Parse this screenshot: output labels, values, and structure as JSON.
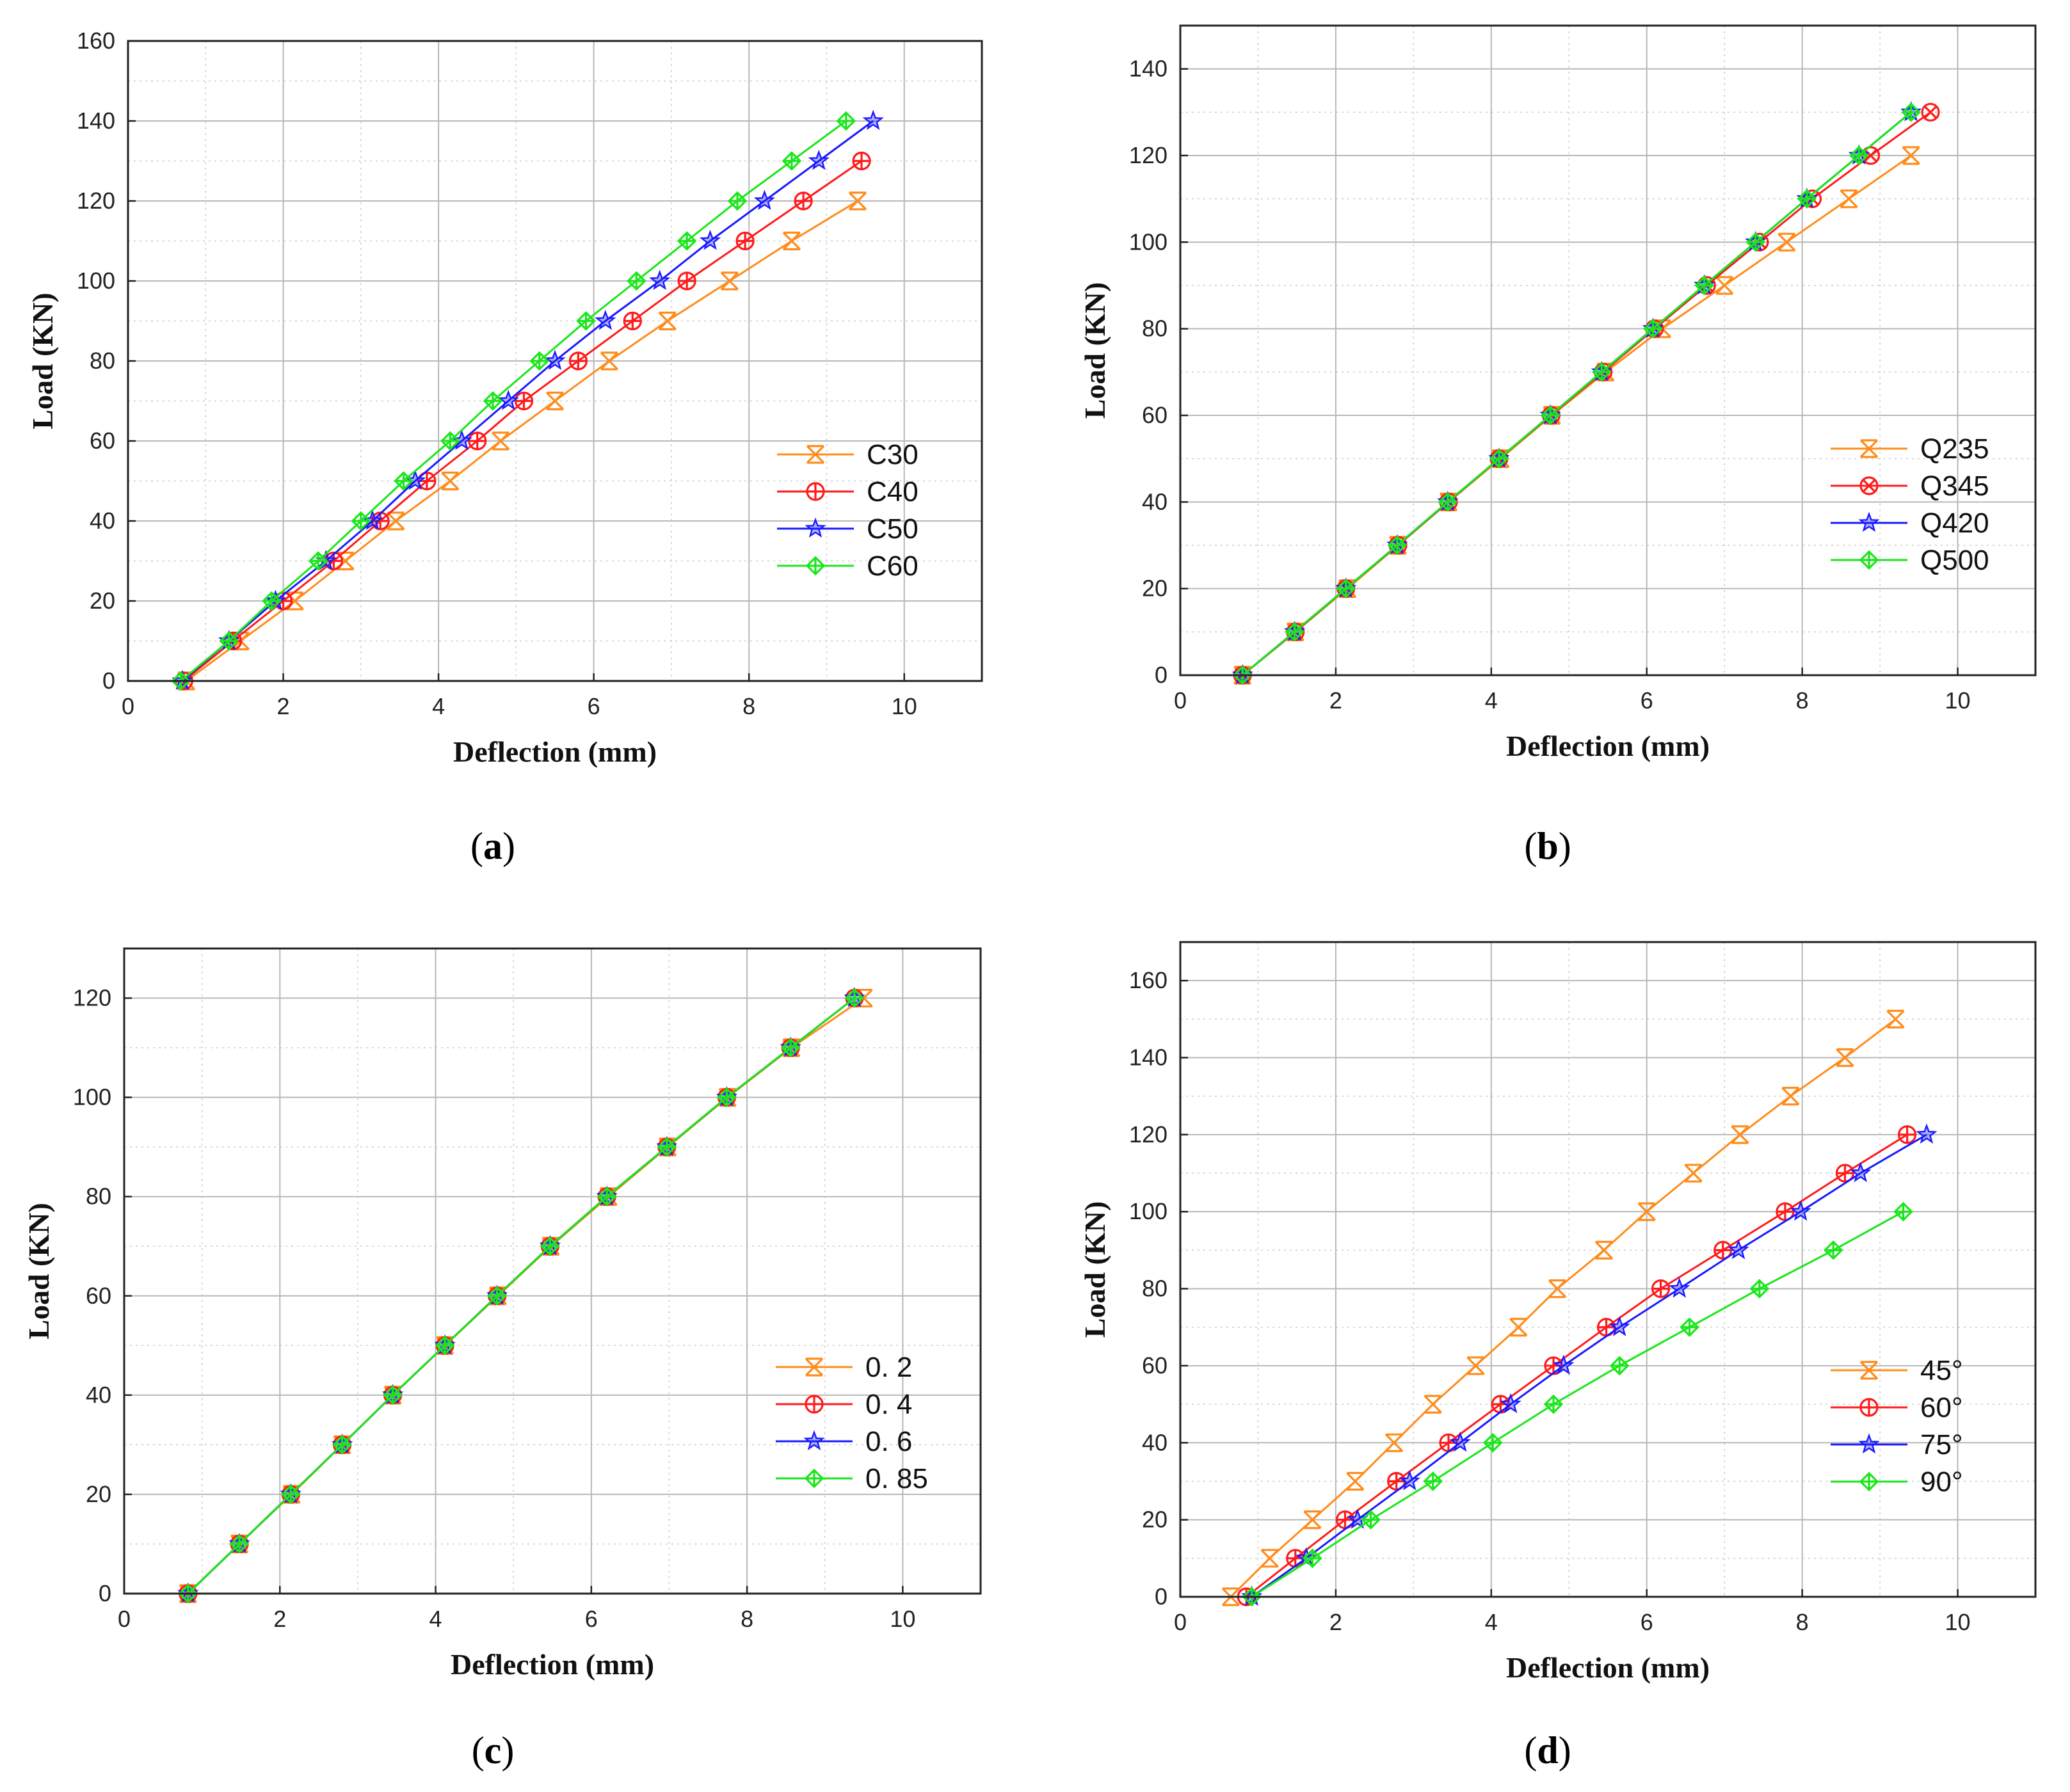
{
  "chart_data": [
    {
      "panel": "a",
      "type": "line",
      "xlabel": "Deflection (mm)",
      "ylabel": "Load (KN)",
      "xlim": [
        0,
        11
      ],
      "ylim": [
        0,
        160
      ],
      "xticks": [
        0,
        2,
        4,
        6,
        8,
        10
      ],
      "yticks": [
        0,
        20,
        40,
        60,
        80,
        100,
        120,
        140,
        160
      ],
      "grid": true,
      "legend_position": "lower-right",
      "series": [
        {
          "name": "C30",
          "color": "#ff8c1a",
          "marker": "x-cross",
          "x": [
            0.75,
            1.45,
            2.15,
            2.8,
            3.45,
            4.15,
            4.8,
            5.5,
            6.2,
            6.95,
            7.75,
            8.55,
            9.4
          ],
          "y": [
            0,
            10,
            20,
            30,
            40,
            50,
            60,
            70,
            80,
            90,
            100,
            110,
            120
          ]
        },
        {
          "name": "C40",
          "color": "#ff1a1a",
          "marker": "circle-cross",
          "x": [
            0.72,
            1.35,
            2.0,
            2.65,
            3.25,
            3.85,
            4.5,
            5.1,
            5.8,
            6.5,
            7.2,
            7.95,
            8.7,
            9.45
          ],
          "y": [
            0,
            10,
            20,
            30,
            40,
            50,
            60,
            70,
            80,
            90,
            100,
            110,
            120,
            130
          ]
        },
        {
          "name": "C50",
          "color": "#1a1aff",
          "marker": "star",
          "x": [
            0.7,
            1.3,
            1.9,
            2.55,
            3.15,
            3.7,
            4.3,
            4.9,
            5.5,
            6.15,
            6.85,
            7.5,
            8.2,
            8.9,
            9.6
          ],
          "y": [
            0,
            10,
            20,
            30,
            40,
            50,
            60,
            70,
            80,
            90,
            100,
            110,
            120,
            130,
            140
          ]
        },
        {
          "name": "C60",
          "color": "#1ae61a",
          "marker": "diamond-cross",
          "x": [
            0.68,
            1.3,
            1.85,
            2.45,
            3.0,
            3.55,
            4.15,
            4.7,
            5.3,
            5.9,
            6.55,
            7.2,
            7.85,
            8.55,
            9.25
          ],
          "y": [
            0,
            10,
            20,
            30,
            40,
            50,
            60,
            70,
            80,
            90,
            100,
            110,
            120,
            130,
            140
          ]
        }
      ]
    },
    {
      "panel": "b",
      "type": "line",
      "xlabel": "Deflection (mm)",
      "ylabel": "Load (KN)",
      "xlim": [
        0,
        11
      ],
      "ylim": [
        0,
        150
      ],
      "xticks": [
        0,
        2,
        4,
        6,
        8,
        10
      ],
      "yticks": [
        0,
        20,
        40,
        60,
        80,
        100,
        120,
        140
      ],
      "grid": true,
      "legend_position": "lower-right",
      "series": [
        {
          "name": "Q235",
          "color": "#ff8c1a",
          "marker": "x-cross",
          "x": [
            0.8,
            1.48,
            2.15,
            2.8,
            3.45,
            4.12,
            4.78,
            5.47,
            6.2,
            7.0,
            7.8,
            8.6,
            9.4
          ],
          "y": [
            0,
            10,
            20,
            30,
            40,
            50,
            60,
            70,
            80,
            90,
            100,
            110,
            120
          ]
        },
        {
          "name": "Q345",
          "color": "#ff1a1a",
          "marker": "circle-x",
          "x": [
            0.8,
            1.48,
            2.13,
            2.8,
            3.45,
            4.1,
            4.77,
            5.44,
            6.1,
            6.77,
            7.45,
            8.13,
            8.88,
            9.65
          ],
          "y": [
            0,
            10,
            20,
            30,
            40,
            50,
            60,
            70,
            80,
            90,
            100,
            110,
            120,
            130
          ]
        },
        {
          "name": "Q420",
          "color": "#1a1aff",
          "marker": "star",
          "x": [
            0.8,
            1.47,
            2.13,
            2.79,
            3.44,
            4.1,
            4.76,
            5.42,
            6.08,
            6.74,
            7.4,
            8.06,
            8.73,
            9.4
          ],
          "y": [
            0,
            10,
            20,
            30,
            40,
            50,
            60,
            70,
            80,
            90,
            100,
            110,
            120,
            130
          ]
        },
        {
          "name": "Q500",
          "color": "#1ae61a",
          "marker": "diamond-cross",
          "x": [
            0.8,
            1.47,
            2.13,
            2.79,
            3.44,
            4.1,
            4.76,
            5.42,
            6.08,
            6.74,
            7.4,
            8.06,
            8.73,
            9.4
          ],
          "y": [
            0,
            10,
            20,
            30,
            40,
            50,
            60,
            70,
            80,
            90,
            100,
            110,
            120,
            130
          ]
        }
      ]
    },
    {
      "panel": "c",
      "type": "line",
      "xlabel": "Deflection (mm)",
      "ylabel": "Load (KN)",
      "xlim": [
        0,
        11
      ],
      "ylim": [
        0,
        130
      ],
      "xticks": [
        0,
        2,
        4,
        6,
        8,
        10
      ],
      "yticks": [
        0,
        20,
        40,
        60,
        80,
        100,
        120
      ],
      "grid": true,
      "legend_position": "lower-right",
      "series": [
        {
          "name": "0. 2",
          "color": "#ff8c1a",
          "marker": "x-cross",
          "x": [
            0.82,
            1.48,
            2.15,
            2.8,
            3.45,
            4.12,
            4.8,
            5.48,
            6.22,
            6.98,
            7.75,
            8.57,
            9.5
          ],
          "y": [
            0,
            10,
            20,
            30,
            40,
            50,
            60,
            70,
            80,
            90,
            100,
            110,
            120
          ]
        },
        {
          "name": "0. 4",
          "color": "#ff1a1a",
          "marker": "circle-cross",
          "x": [
            0.82,
            1.48,
            2.14,
            2.8,
            3.45,
            4.12,
            4.79,
            5.47,
            6.2,
            6.97,
            7.74,
            8.56,
            9.38
          ],
          "y": [
            0,
            10,
            20,
            30,
            40,
            50,
            60,
            70,
            80,
            90,
            100,
            110,
            120
          ]
        },
        {
          "name": "0. 6",
          "color": "#1a1aff",
          "marker": "star",
          "x": [
            0.82,
            1.48,
            2.14,
            2.8,
            3.45,
            4.12,
            4.79,
            5.47,
            6.2,
            6.97,
            7.74,
            8.56,
            9.38
          ],
          "y": [
            0,
            10,
            20,
            30,
            40,
            50,
            60,
            70,
            80,
            90,
            100,
            110,
            120
          ]
        },
        {
          "name": "0. 85",
          "color": "#1ae61a",
          "marker": "diamond-cross",
          "x": [
            0.82,
            1.48,
            2.14,
            2.8,
            3.45,
            4.12,
            4.79,
            5.47,
            6.2,
            6.97,
            7.74,
            8.56,
            9.38
          ],
          "y": [
            0,
            10,
            20,
            30,
            40,
            50,
            60,
            70,
            80,
            90,
            100,
            110,
            120
          ]
        }
      ]
    },
    {
      "panel": "d",
      "type": "line",
      "xlabel": "Deflection (mm)",
      "ylabel": "Load (KN)",
      "xlim": [
        0,
        11
      ],
      "ylim": [
        0,
        170
      ],
      "xticks": [
        0,
        2,
        4,
        6,
        8,
        10
      ],
      "yticks": [
        0,
        20,
        40,
        60,
        80,
        100,
        120,
        140,
        160
      ],
      "grid": true,
      "legend_position": "lower-right",
      "series": [
        {
          "name": "45°",
          "color": "#ff8c1a",
          "marker": "x-cross",
          "x": [
            0.65,
            1.15,
            1.7,
            2.25,
            2.75,
            3.25,
            3.8,
            4.35,
            4.85,
            5.45,
            6.0,
            6.6,
            7.2,
            7.85,
            8.55,
            9.2
          ],
          "y": [
            0,
            10,
            20,
            30,
            40,
            50,
            60,
            70,
            80,
            90,
            100,
            110,
            120,
            130,
            140,
            150
          ]
        },
        {
          "name": "60°",
          "color": "#ff1a1a",
          "marker": "circle-cross",
          "x": [
            0.85,
            1.48,
            2.12,
            2.78,
            3.45,
            4.12,
            4.8,
            5.48,
            6.18,
            6.98,
            7.78,
            8.55,
            9.35
          ],
          "y": [
            0,
            10,
            20,
            30,
            40,
            50,
            60,
            70,
            80,
            90,
            100,
            110,
            120
          ]
        },
        {
          "name": "75°",
          "color": "#1a1aff",
          "marker": "star",
          "x": [
            0.92,
            1.62,
            2.28,
            2.95,
            3.6,
            4.25,
            4.93,
            5.65,
            6.42,
            7.18,
            7.98,
            8.75,
            9.6
          ],
          "y": [
            0,
            10,
            20,
            30,
            40,
            50,
            60,
            70,
            80,
            90,
            100,
            110,
            120
          ]
        },
        {
          "name": "90°",
          "color": "#1ae61a",
          "marker": "diamond-cross",
          "x": [
            0.92,
            1.7,
            2.45,
            3.25,
            4.02,
            4.8,
            5.65,
            6.55,
            7.45,
            8.4,
            9.3
          ],
          "y": [
            0,
            10,
            20,
            30,
            40,
            50,
            60,
            70,
            80,
            90,
            100
          ]
        }
      ]
    }
  ],
  "panel_labels": [
    {
      "open": "(",
      "letter": "a",
      "close": ")"
    },
    {
      "open": "(",
      "letter": "b",
      "close": ")"
    },
    {
      "open": "(",
      "letter": "c",
      "close": ")"
    },
    {
      "open": "(",
      "letter": "d",
      "close": ")"
    }
  ]
}
